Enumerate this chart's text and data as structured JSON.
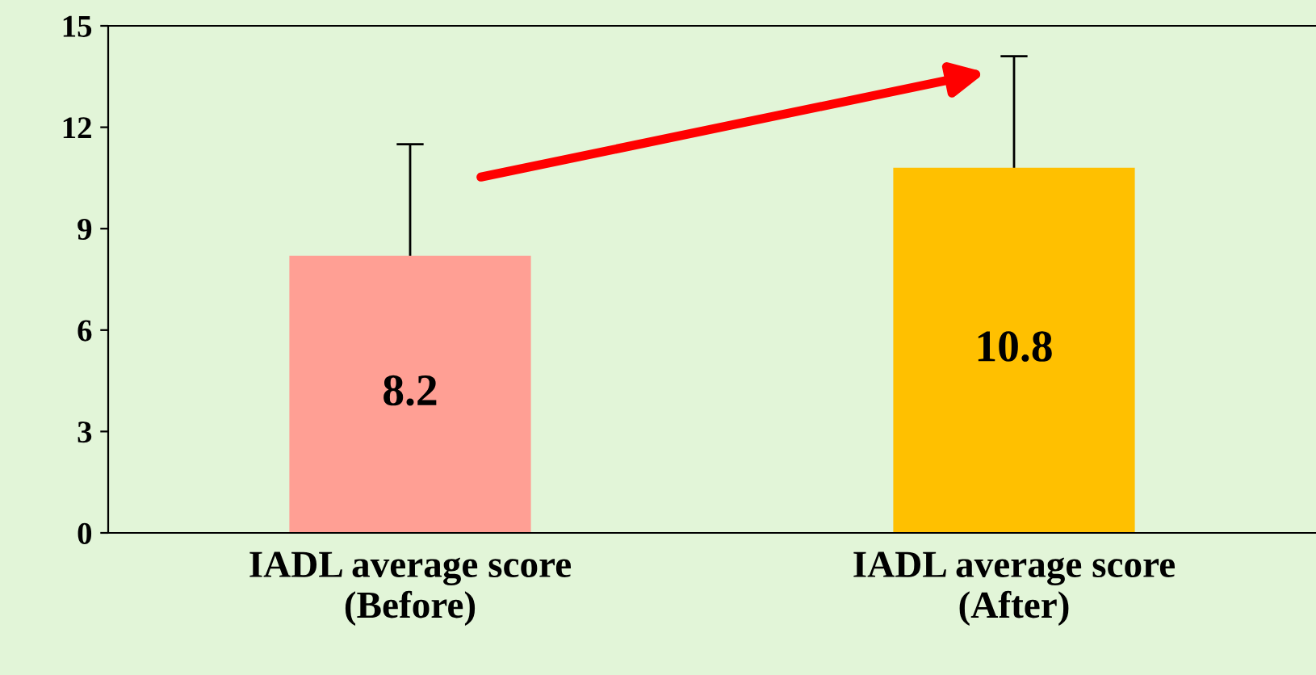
{
  "chart_data": {
    "type": "bar",
    "categories": [
      "IADL average score\n(Before)",
      "IADL average score\n(After)"
    ],
    "values": [
      8.2,
      10.8
    ],
    "colors": [
      "#ff9f94",
      "#ffc000"
    ],
    "errors": [
      3.3,
      3.3
    ],
    "data_labels": true,
    "ylim": [
      0,
      15
    ],
    "yticks": [
      0,
      3,
      6,
      9,
      12,
      15
    ],
    "grid": false,
    "legend": false
  }
}
